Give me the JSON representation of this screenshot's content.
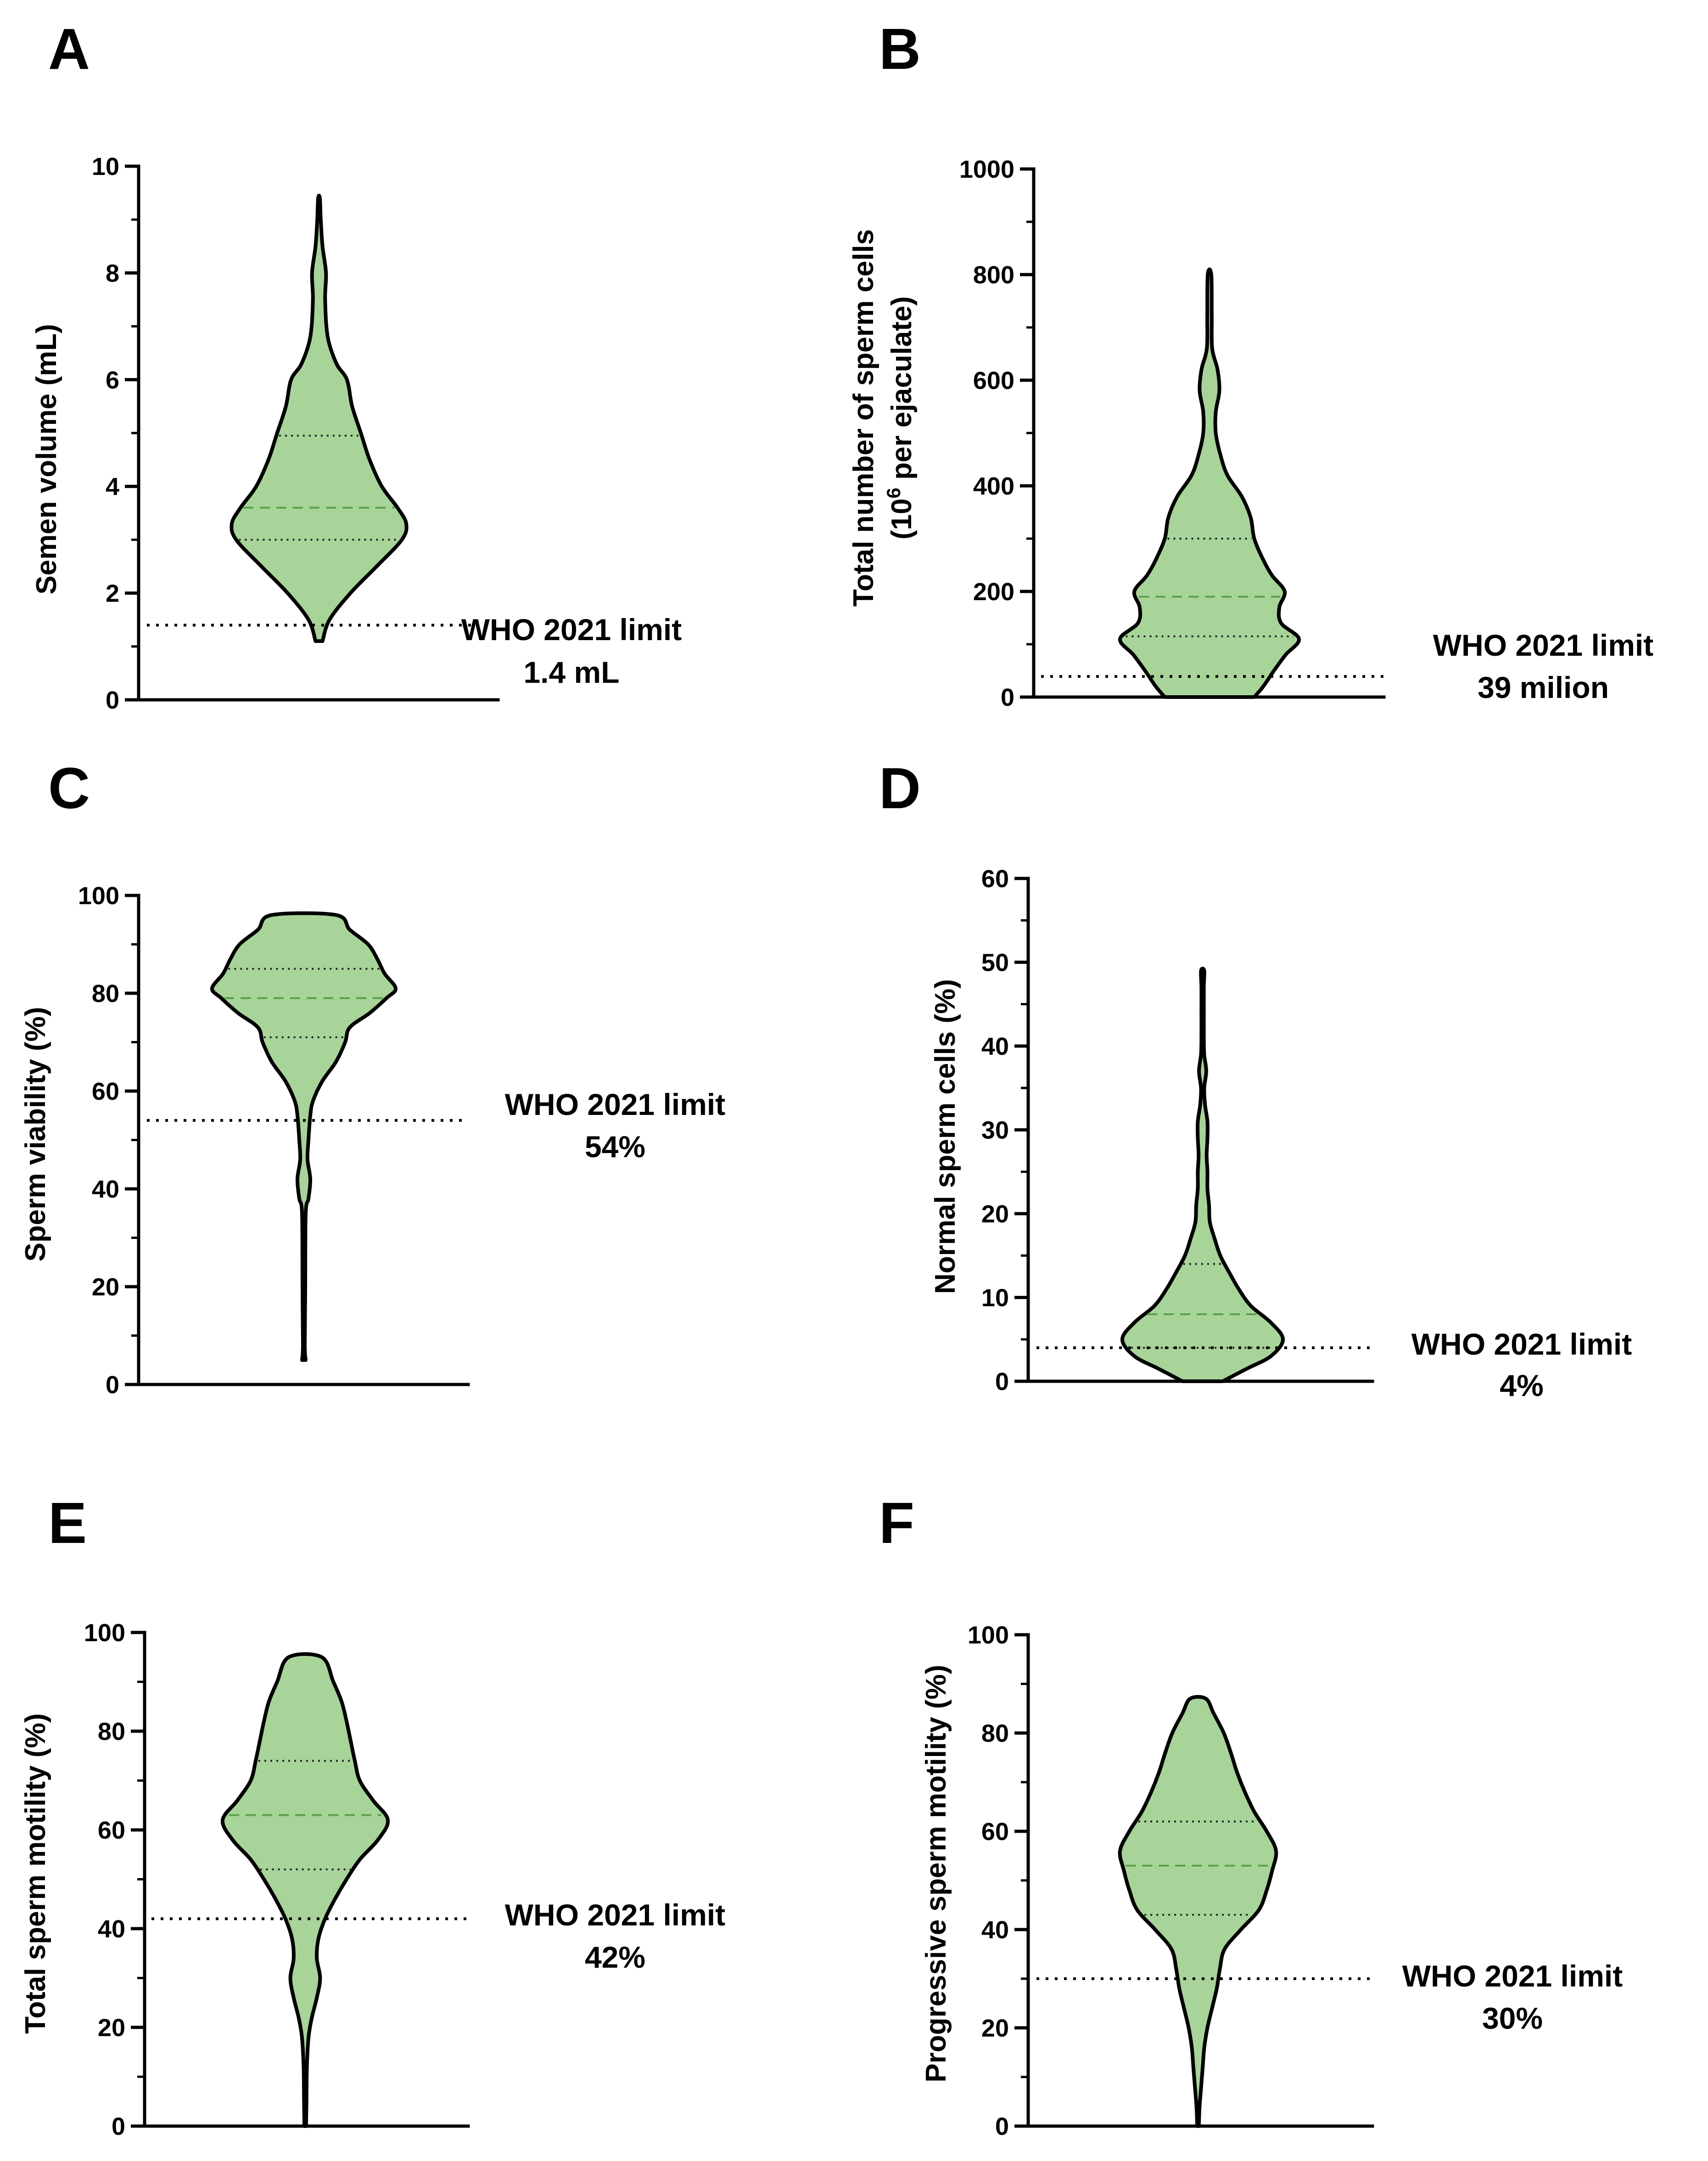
{
  "figure_title": "",
  "chart_data": [
    {
      "id": "A",
      "type": "violin",
      "ylabel": "Semen volume (mL)",
      "ylim": [
        0,
        10
      ],
      "ticks": [
        0,
        2,
        4,
        6,
        8,
        10
      ],
      "tick_labels": [
        "0",
        "2",
        "4",
        "6",
        "8",
        "10"
      ],
      "minor_step": 1,
      "median": 3.6,
      "q1": 3.0,
      "q3": 4.95,
      "limit": {
        "value": 1.4,
        "line1": "WHO 2021 limit",
        "line2": "1.4 mL"
      },
      "density": [
        [
          1.1,
          0.04
        ],
        [
          1.5,
          0.12
        ],
        [
          2.0,
          0.36
        ],
        [
          2.5,
          0.66
        ],
        [
          3.0,
          0.95
        ],
        [
          3.3,
          1.0
        ],
        [
          3.6,
          0.9
        ],
        [
          4.0,
          0.72
        ],
        [
          4.5,
          0.58
        ],
        [
          5.0,
          0.48
        ],
        [
          5.5,
          0.38
        ],
        [
          6.0,
          0.32
        ],
        [
          6.3,
          0.2
        ],
        [
          6.8,
          0.1
        ],
        [
          7.5,
          0.07
        ],
        [
          8.0,
          0.08
        ],
        [
          8.5,
          0.04
        ],
        [
          9.0,
          0.02
        ],
        [
          9.4,
          0.01
        ]
      ]
    },
    {
      "id": "B",
      "type": "violin",
      "ylabel_line1": "Total number of sperm cells",
      "ylabel_line2_pre": "(10",
      "ylabel_line2_sup": "6",
      "ylabel_line2_post": " per ejaculate)",
      "ylim": [
        0,
        1000
      ],
      "ticks": [
        0,
        200,
        400,
        600,
        800,
        1000
      ],
      "tick_labels": [
        "0",
        "200",
        "400",
        "600",
        "800",
        "1000"
      ],
      "minor_step": 100,
      "median": 190,
      "q1": 115,
      "q3": 300,
      "limit": {
        "value": 39,
        "line1": "WHO 2021 limit",
        "line2": "39 milion"
      },
      "density": [
        [
          0,
          0.5
        ],
        [
          20,
          0.6
        ],
        [
          50,
          0.72
        ],
        [
          80,
          0.85
        ],
        [
          110,
          1.0
        ],
        [
          140,
          0.8
        ],
        [
          170,
          0.78
        ],
        [
          200,
          0.84
        ],
        [
          230,
          0.7
        ],
        [
          260,
          0.6
        ],
        [
          300,
          0.5
        ],
        [
          340,
          0.46
        ],
        [
          380,
          0.36
        ],
        [
          420,
          0.2
        ],
        [
          460,
          0.12
        ],
        [
          500,
          0.07
        ],
        [
          540,
          0.07
        ],
        [
          580,
          0.11
        ],
        [
          620,
          0.09
        ],
        [
          660,
          0.03
        ],
        [
          720,
          0.025
        ],
        [
          800,
          0.02
        ]
      ]
    },
    {
      "id": "C",
      "type": "violin",
      "ylabel": "Sperm viability (%)",
      "ylim": [
        0,
        100
      ],
      "ticks": [
        0,
        20,
        40,
        60,
        80,
        100
      ],
      "tick_labels": [
        "0",
        "20",
        "40",
        "60",
        "80",
        "100"
      ],
      "minor_step": 10,
      "median": 79,
      "q1": 71,
      "q3": 85,
      "limit": {
        "value": 54,
        "line1": "WHO 2021 limit",
        "line2": "54%"
      },
      "density": [
        [
          5,
          0.02
        ],
        [
          8,
          0.01
        ],
        [
          20,
          0.015
        ],
        [
          35,
          0.02
        ],
        [
          38,
          0.05
        ],
        [
          42,
          0.07
        ],
        [
          46,
          0.04
        ],
        [
          50,
          0.05
        ],
        [
          55,
          0.07
        ],
        [
          58,
          0.1
        ],
        [
          62,
          0.2
        ],
        [
          66,
          0.35
        ],
        [
          70,
          0.45
        ],
        [
          73,
          0.5
        ],
        [
          76,
          0.72
        ],
        [
          79,
          0.9
        ],
        [
          81,
          1.0
        ],
        [
          84,
          0.88
        ],
        [
          87,
          0.8
        ],
        [
          90,
          0.7
        ],
        [
          93,
          0.5
        ],
        [
          96,
          0.35
        ]
      ]
    },
    {
      "id": "D",
      "type": "violin",
      "ylabel": "Normal sperm cells (%)",
      "ylim": [
        0,
        60
      ],
      "ticks": [
        0,
        10,
        20,
        30,
        40,
        50,
        60
      ],
      "tick_labels": [
        "0",
        "10",
        "20",
        "30",
        "40",
        "50",
        "60"
      ],
      "minor_step": 5,
      "median": 8,
      "q1": 4,
      "q3": 14,
      "limit": {
        "value": 4,
        "line1": "WHO 2021 limit",
        "line2": "4%"
      },
      "density": [
        [
          0,
          0.25
        ],
        [
          1.5,
          0.55
        ],
        [
          3,
          0.85
        ],
        [
          5,
          1.0
        ],
        [
          7,
          0.85
        ],
        [
          9,
          0.6
        ],
        [
          11,
          0.45
        ],
        [
          13,
          0.33
        ],
        [
          15,
          0.22
        ],
        [
          17,
          0.15
        ],
        [
          19,
          0.09
        ],
        [
          21,
          0.08
        ],
        [
          23,
          0.06
        ],
        [
          25,
          0.06
        ],
        [
          27,
          0.05
        ],
        [
          29,
          0.06
        ],
        [
          31,
          0.06
        ],
        [
          33,
          0.03
        ],
        [
          35,
          0.02
        ],
        [
          37,
          0.045
        ],
        [
          39,
          0.02
        ],
        [
          41,
          0.015
        ],
        [
          44,
          0.015
        ],
        [
          47,
          0.015
        ],
        [
          49,
          0.02
        ]
      ]
    },
    {
      "id": "E",
      "type": "violin",
      "ylabel": "Total sperm motility (%)",
      "ylim": [
        0,
        100
      ],
      "ticks": [
        0,
        20,
        40,
        60,
        80,
        100
      ],
      "tick_labels": [
        "0",
        "20",
        "40",
        "60",
        "80",
        "100"
      ],
      "minor_step": 10,
      "median": 63,
      "q1": 52,
      "q3": 74,
      "limit": {
        "value": 42,
        "line1": "WHO 2021 limit",
        "line2": "42%"
      },
      "density": [
        [
          0,
          0.01
        ],
        [
          5,
          0.015
        ],
        [
          12,
          0.02
        ],
        [
          18,
          0.04
        ],
        [
          22,
          0.08
        ],
        [
          26,
          0.14
        ],
        [
          30,
          0.18
        ],
        [
          34,
          0.14
        ],
        [
          38,
          0.16
        ],
        [
          42,
          0.24
        ],
        [
          46,
          0.36
        ],
        [
          50,
          0.5
        ],
        [
          54,
          0.66
        ],
        [
          58,
          0.88
        ],
        [
          62,
          1.0
        ],
        [
          66,
          0.82
        ],
        [
          70,
          0.66
        ],
        [
          74,
          0.6
        ],
        [
          78,
          0.55
        ],
        [
          82,
          0.5
        ],
        [
          86,
          0.44
        ],
        [
          90,
          0.34
        ],
        [
          95,
          0.2
        ]
      ]
    },
    {
      "id": "F",
      "type": "violin",
      "ylabel": "Progressive sperm motility (%)",
      "ylim": [
        0,
        100
      ],
      "ticks": [
        0,
        20,
        40,
        60,
        80,
        100
      ],
      "tick_labels": [
        "0",
        "20",
        "40",
        "60",
        "80",
        "100"
      ],
      "minor_step": 10,
      "median": 53,
      "q1": 43,
      "q3": 62,
      "limit": {
        "value": 30,
        "line1": "WHO 2021 limit",
        "line2": "30%"
      },
      "density": [
        [
          0,
          0.01
        ],
        [
          4,
          0.02
        ],
        [
          8,
          0.04
        ],
        [
          12,
          0.06
        ],
        [
          16,
          0.08
        ],
        [
          20,
          0.12
        ],
        [
          24,
          0.18
        ],
        [
          28,
          0.24
        ],
        [
          32,
          0.28
        ],
        [
          36,
          0.34
        ],
        [
          40,
          0.55
        ],
        [
          44,
          0.78
        ],
        [
          48,
          0.88
        ],
        [
          52,
          0.95
        ],
        [
          56,
          1.0
        ],
        [
          60,
          0.88
        ],
        [
          64,
          0.72
        ],
        [
          68,
          0.6
        ],
        [
          72,
          0.5
        ],
        [
          76,
          0.42
        ],
        [
          80,
          0.33
        ],
        [
          84,
          0.2
        ],
        [
          87,
          0.1
        ]
      ]
    }
  ]
}
